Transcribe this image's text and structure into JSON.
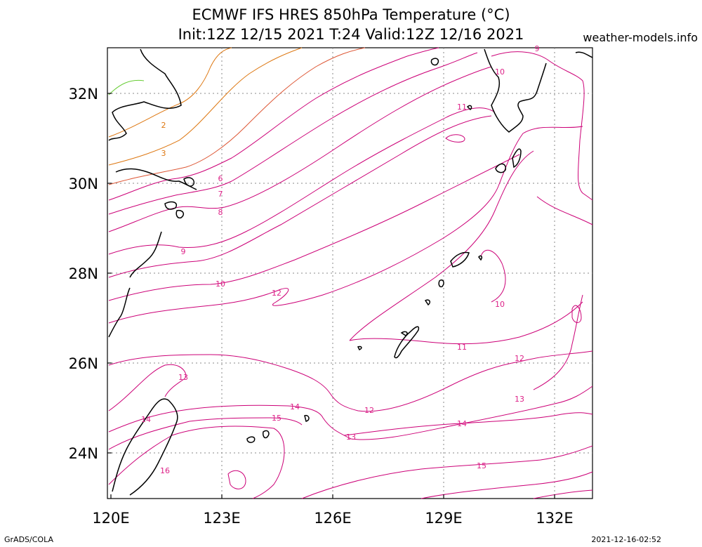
{
  "header": {
    "title_line1": "ECMWF IFS HRES 850hPa Temperature (°C)",
    "title_line2": "Init:12Z 12/15 2021 T:24 Valid:12Z 12/16 2021",
    "site": "weather-models.info"
  },
  "footer": {
    "left": "GrADS/COLA",
    "right": "2021-12-16-02:52"
  },
  "map": {
    "lon_range": [
      120,
      133
    ],
    "lat_range": [
      23,
      33
    ],
    "lon_ticks": [
      {
        "value": 120,
        "label": "120E"
      },
      {
        "value": 123,
        "label": "123E"
      },
      {
        "value": 126,
        "label": "126E"
      },
      {
        "value": 129,
        "label": "129E"
      },
      {
        "value": 132,
        "label": "132E"
      }
    ],
    "lat_ticks": [
      {
        "value": 24,
        "label": "24N"
      },
      {
        "value": 26,
        "label": "26N"
      },
      {
        "value": 28,
        "label": "28N"
      },
      {
        "value": 30,
        "label": "30N"
      },
      {
        "value": 32,
        "label": "32N"
      }
    ],
    "grid": "dotted",
    "contour_colors": {
      "low_green": "#66cc33",
      "mid_orange": "#dd7711",
      "warm_magenta": "#cc0077",
      "label_magenta": "#dd2288",
      "coast": "#000000"
    },
    "contour_labels": [
      "2",
      "3",
      "6",
      "7",
      "8",
      "9",
      "10",
      "10",
      "10",
      "11",
      "11",
      "12",
      "12",
      "12",
      "13",
      "13",
      "13",
      "14",
      "14",
      "14",
      "15",
      "15",
      "16",
      "9"
    ]
  }
}
